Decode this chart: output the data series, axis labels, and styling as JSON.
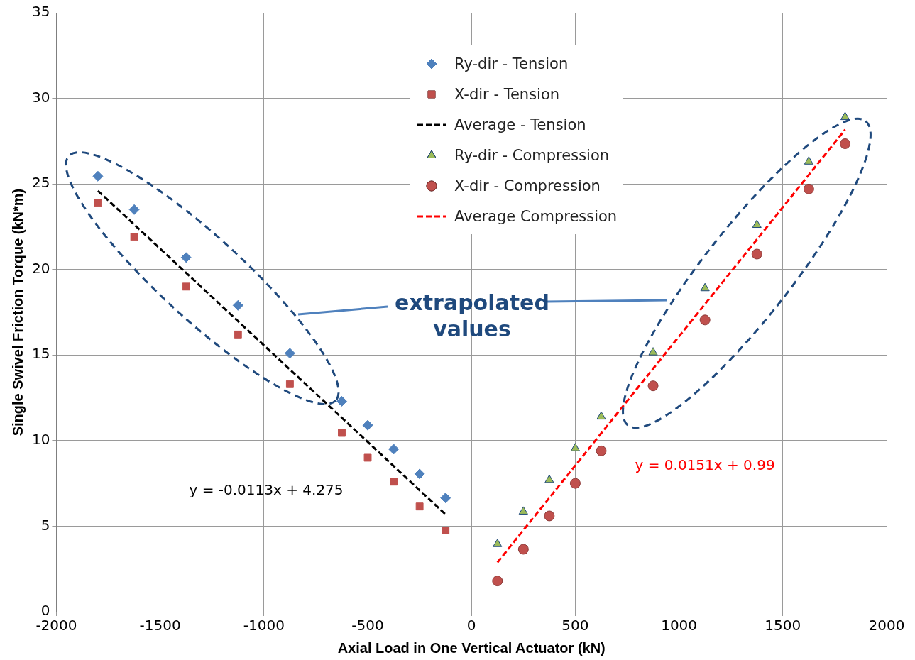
{
  "chart_data": {
    "type": "scatter",
    "xlabel": "Axial Load in One Vertical Actuator (kN)",
    "ylabel": "Single Swivel Friction Torque (kN*m)",
    "xlim": [
      -2000,
      2000
    ],
    "xticks": [
      -2000,
      -1500,
      -1000,
      -500,
      0,
      500,
      1000,
      1500,
      2000
    ],
    "ylim": [
      0,
      35
    ],
    "yticks": [
      0,
      5,
      10,
      15,
      20,
      25,
      30,
      35
    ],
    "grid": true,
    "legend": "top",
    "series": [
      {
        "name": "Ry-dir - Tension",
        "color": "#4f81bd",
        "marker": "diamond",
        "x": [
          -1800,
          -1625,
          -1375,
          -1125,
          -875,
          -625,
          -500,
          -375,
          -250,
          -125
        ],
        "values": [
          25.45,
          23.5,
          20.7,
          17.9,
          15.1,
          12.3,
          10.9,
          9.5,
          8.05,
          6.65
        ]
      },
      {
        "name": "X-dir - Tension",
        "color": "#c0504d",
        "marker": "square",
        "x": [
          -1800,
          -1625,
          -1375,
          -1125,
          -875,
          -625,
          -500,
          -375,
          -250,
          -125
        ],
        "values": [
          23.9,
          21.9,
          19.0,
          16.2,
          13.3,
          10.45,
          9.0,
          7.6,
          6.15,
          4.75
        ]
      },
      {
        "name": "Average - Tension",
        "type": "line",
        "color": "#000000",
        "marker": "none",
        "line_style": "dashed",
        "x": [
          -1800,
          -125
        ],
        "values": [
          24.6,
          5.69
        ]
      },
      {
        "name": "Ry-dir - Compression",
        "color": "#9bbb59",
        "marker": "triangle",
        "x": [
          125,
          250,
          375,
          500,
          625,
          875,
          1125,
          1375,
          1625,
          1800
        ],
        "values": [
          3.95,
          5.85,
          7.7,
          9.55,
          11.4,
          15.15,
          18.9,
          22.6,
          26.3,
          28.9
        ]
      },
      {
        "name": "X-dir - Compression",
        "color": "#c0504d",
        "marker": "circle",
        "x": [
          125,
          250,
          375,
          500,
          625,
          875,
          1125,
          1375,
          1625,
          1800
        ],
        "values": [
          1.8,
          3.65,
          5.6,
          7.5,
          9.4,
          13.2,
          17.05,
          20.9,
          24.7,
          27.35
        ]
      },
      {
        "name": "Average Compression",
        "type": "line",
        "color": "#ff0000",
        "marker": "none",
        "line_style": "dashed",
        "x": [
          125,
          1800
        ],
        "values": [
          2.88,
          28.17
        ]
      }
    ],
    "annotations": [
      "extrapolated values",
      "y = -0.0113x + 4.275",
      "y = 0.0151x + 0.99"
    ]
  }
}
